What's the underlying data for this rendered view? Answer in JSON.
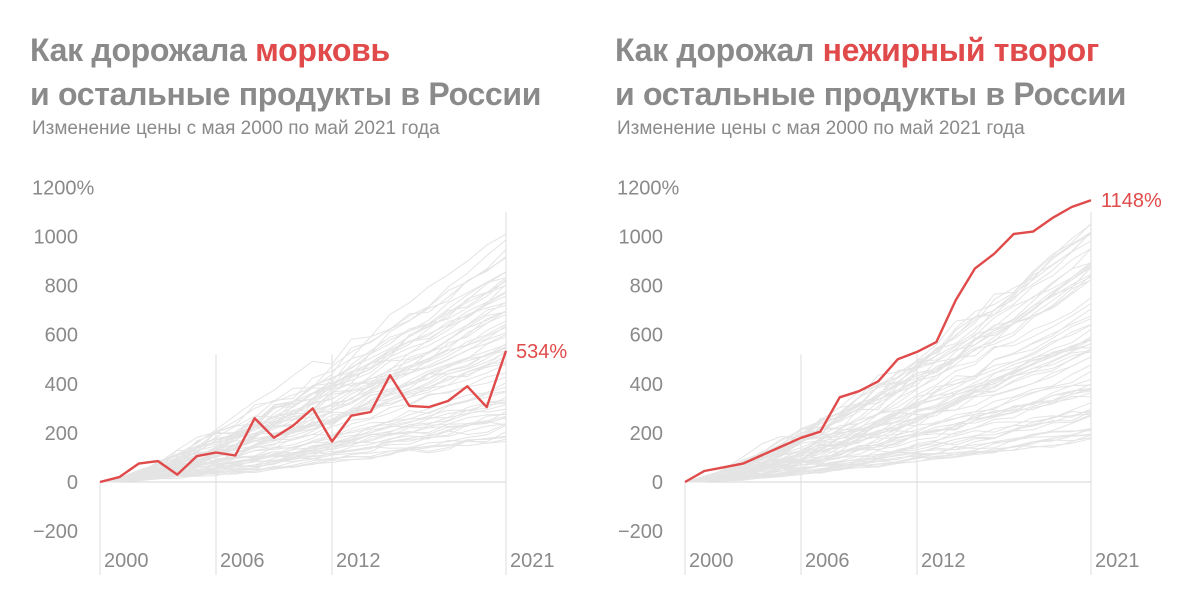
{
  "chart_data": [
    {
      "type": "line",
      "title_prefix": "Как дорожала",
      "title_highlight": "морковь",
      "title_line2": "и остальные продукты в России",
      "subtitle": "Изменение цены с мая 2000 по май 2021 года",
      "x_ticks": [
        2000,
        2006,
        2012,
        2021
      ],
      "x_tick_labels": [
        "2000",
        "2006",
        "2012",
        "2021"
      ],
      "y_ticks": [
        -200,
        0,
        200,
        400,
        600,
        800,
        1000,
        1200
      ],
      "y_tick_labels": [
        "−200",
        "0",
        "200",
        "400",
        "600",
        "800",
        "1000",
        "1200%"
      ],
      "xlim": [
        2000,
        2021
      ],
      "ylim": [
        -200,
        1200
      ],
      "highlight_color": "#e04a4a",
      "background_color": "#e6e6e6",
      "end_label": "534%",
      "highlight_series": {
        "x": [
          2000,
          2001,
          2002,
          2003,
          2004,
          2005,
          2006,
          2007,
          2008,
          2009,
          2010,
          2011,
          2012,
          2013,
          2014,
          2015,
          2016,
          2017,
          2018,
          2019,
          2020,
          2021
        ],
        "values": [
          0,
          20,
          75,
          85,
          30,
          105,
          120,
          108,
          260,
          180,
          230,
          300,
          165,
          270,
          285,
          435,
          310,
          305,
          330,
          390,
          305,
          534
        ]
      }
    },
    {
      "type": "line",
      "title_prefix": "Как дорожал",
      "title_highlight": "нежирный творог",
      "title_line2": "и остальные продукты в России",
      "subtitle": "Изменение цены с мая 2000 по май 2021 года",
      "x_ticks": [
        2000,
        2006,
        2012,
        2021
      ],
      "x_tick_labels": [
        "2000",
        "2006",
        "2012",
        "2021"
      ],
      "y_ticks": [
        -200,
        0,
        200,
        400,
        600,
        800,
        1000,
        1200
      ],
      "y_tick_labels": [
        "−200",
        "0",
        "200",
        "400",
        "600",
        "800",
        "1000",
        "1200%"
      ],
      "xlim": [
        2000,
        2021
      ],
      "ylim": [
        -200,
        1200
      ],
      "highlight_color": "#e04a4a",
      "background_color": "#e6e6e6",
      "end_label": "1148%",
      "highlight_series": {
        "x": [
          2000,
          2001,
          2002,
          2003,
          2004,
          2005,
          2006,
          2007,
          2008,
          2009,
          2010,
          2011,
          2012,
          2013,
          2014,
          2015,
          2016,
          2017,
          2018,
          2019,
          2020,
          2021
        ],
        "values": [
          0,
          45,
          60,
          75,
          110,
          145,
          180,
          205,
          345,
          370,
          410,
          500,
          530,
          570,
          740,
          870,
          930,
          1010,
          1020,
          1075,
          1120,
          1148
        ]
      }
    }
  ]
}
